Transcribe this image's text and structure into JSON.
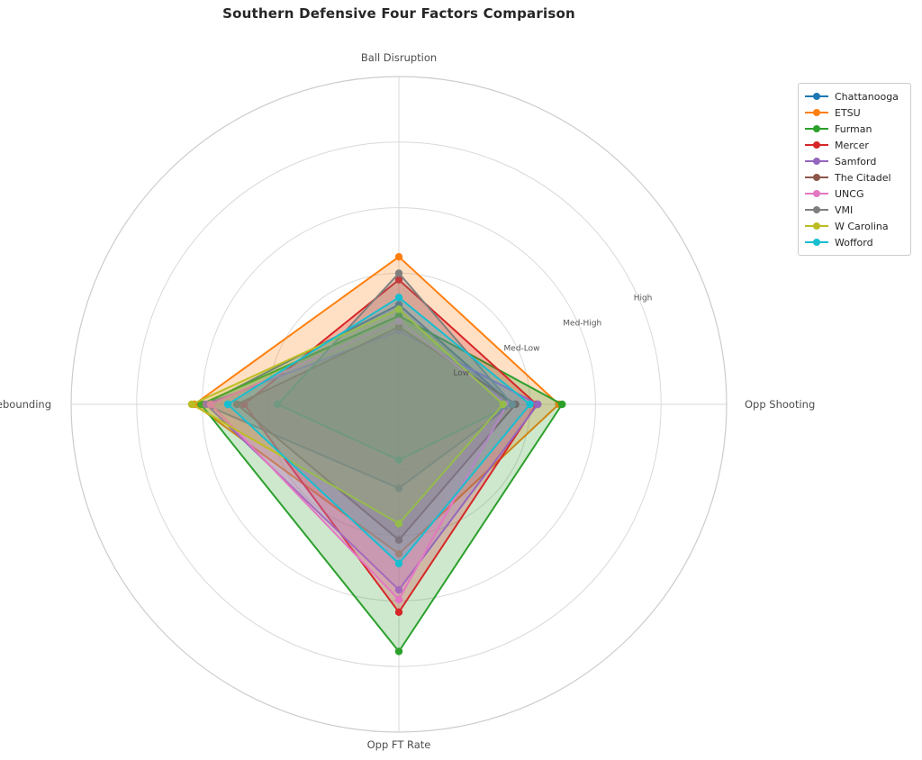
{
  "title": "Southern Defensive Four Factors Comparison",
  "chart_data": {
    "type": "radar",
    "categories": [
      "Ball Disruption",
      "Opp Shooting",
      "Opp FT Rate",
      "Def Rebounding"
    ],
    "radial_tick_labels": [
      "Low",
      "Med-Low",
      "Med-High",
      "High"
    ],
    "radial_tick_values": [
      1,
      2,
      3,
      4
    ],
    "rlim": [
      0,
      5
    ],
    "grid": true,
    "legend_position": "upper right",
    "tick_label_angle_deg": 22.5,
    "series": [
      {
        "name": "Chattanooga",
        "color": "#1f77b4",
        "values": [
          1.52,
          1.72,
          1.28,
          2.97
        ]
      },
      {
        "name": "ETSU",
        "color": "#ff7f0e",
        "values": [
          2.25,
          2.44,
          2.28,
          3.12
        ]
      },
      {
        "name": "Furman",
        "color": "#2ca02c",
        "values": [
          1.35,
          2.49,
          3.77,
          3.02
        ]
      },
      {
        "name": "Mercer",
        "color": "#d62728",
        "values": [
          1.9,
          2.1,
          3.17,
          2.36
        ]
      },
      {
        "name": "Samford",
        "color": "#9467bd",
        "values": [
          1.12,
          2.12,
          2.83,
          2.94
        ]
      },
      {
        "name": "The Citadel",
        "color": "#8c564b",
        "values": [
          1.18,
          1.78,
          2.07,
          2.47
        ]
      },
      {
        "name": "UNCG",
        "color": "#e377c2",
        "values": [
          1.27,
          1.65,
          2.98,
          2.87
        ]
      },
      {
        "name": "VMI",
        "color": "#7f7f7f",
        "values": [
          2.0,
          1.73,
          0.85,
          1.85
        ]
      },
      {
        "name": "W Carolina",
        "color": "#bcbd22",
        "values": [
          1.45,
          1.59,
          1.82,
          3.16
        ]
      },
      {
        "name": "Wofford",
        "color": "#17becf",
        "values": [
          1.63,
          2.0,
          2.43,
          2.61
        ]
      }
    ],
    "style": {
      "grid_color": "#d9d9d9",
      "rim_color": "#cccccc",
      "tick_text_color": "#555555",
      "axis_label_color": "#4d4d4d",
      "fill_alpha": 0.24
    }
  }
}
